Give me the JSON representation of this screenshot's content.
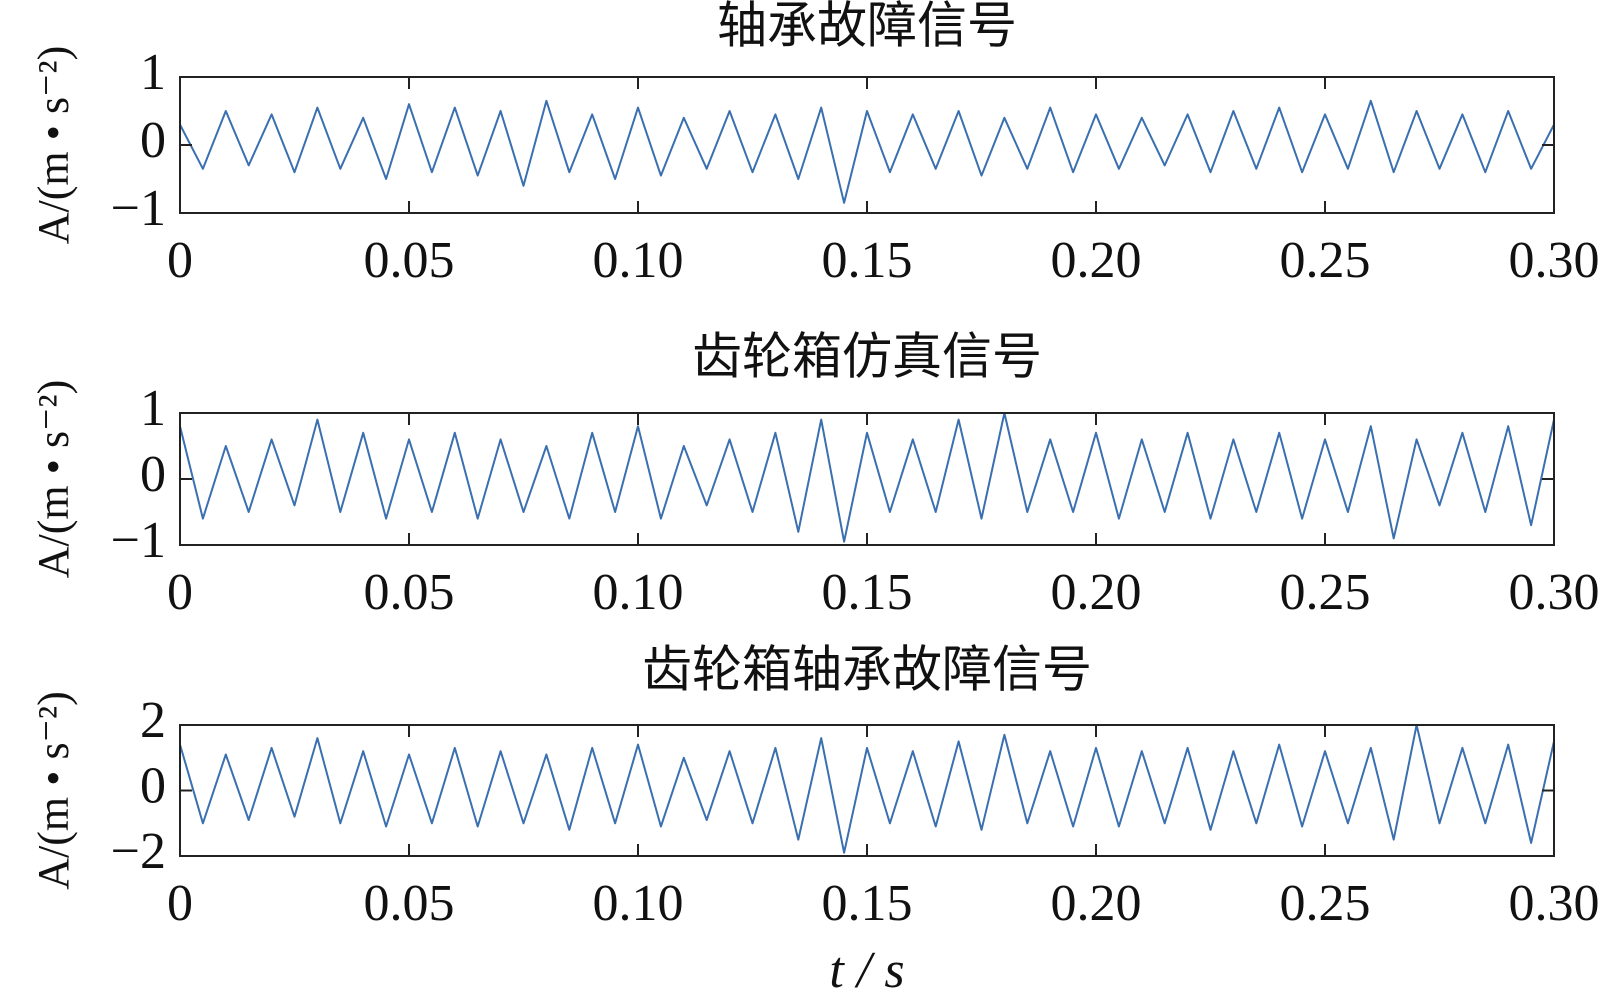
{
  "chart_data": [
    {
      "type": "line",
      "title": "轴承故障信号",
      "ylabel": "A/(m • s⁻²)",
      "color": "#3a6fb0",
      "x": [
        0,
        0.005,
        0.01,
        0.015,
        0.02,
        0.025,
        0.03,
        0.035,
        0.04,
        0.045,
        0.05,
        0.055,
        0.06,
        0.065,
        0.07,
        0.075,
        0.08,
        0.085,
        0.09,
        0.095,
        0.1,
        0.105,
        0.11,
        0.115,
        0.12,
        0.125,
        0.13,
        0.135,
        0.14,
        0.145,
        0.15,
        0.155,
        0.16,
        0.165,
        0.17,
        0.175,
        0.18,
        0.185,
        0.19,
        0.195,
        0.2,
        0.205,
        0.21,
        0.215,
        0.22,
        0.225,
        0.23,
        0.235,
        0.24,
        0.245,
        0.25,
        0.255,
        0.26,
        0.265,
        0.27,
        0.275,
        0.28,
        0.285,
        0.29,
        0.295,
        0.3
      ],
      "values": [
        0.3,
        -0.35,
        0.5,
        -0.3,
        0.45,
        -0.4,
        0.55,
        -0.35,
        0.4,
        -0.5,
        0.6,
        -0.4,
        0.55,
        -0.45,
        0.5,
        -0.6,
        0.65,
        -0.4,
        0.45,
        -0.5,
        0.55,
        -0.45,
        0.4,
        -0.35,
        0.5,
        -0.4,
        0.45,
        -0.5,
        0.55,
        -0.85,
        0.5,
        -0.4,
        0.45,
        -0.35,
        0.5,
        -0.45,
        0.4,
        -0.35,
        0.55,
        -0.4,
        0.45,
        -0.35,
        0.4,
        -0.3,
        0.45,
        -0.4,
        0.5,
        -0.35,
        0.55,
        -0.4,
        0.45,
        -0.35,
        0.65,
        -0.4,
        0.5,
        -0.35,
        0.45,
        -0.4,
        0.5,
        -0.35,
        0.3
      ],
      "xlim": [
        0,
        0.3
      ],
      "xticks": [
        0,
        0.05,
        {
          "value": 0.1,
          "label": "0.10"
        },
        0.15,
        {
          "value": 0.2,
          "label": "0.20"
        },
        0.25,
        {
          "value": 0.3,
          "label": "0.30"
        }
      ],
      "ylim": [
        -1,
        1
      ],
      "yticks": [
        {
          "value": -1,
          "label": "−1"
        },
        0,
        1
      ]
    },
    {
      "type": "line",
      "title": "齿轮箱仿真信号",
      "ylabel": "A/(m • s⁻²)",
      "color": "#3a6fb0",
      "x": [
        0,
        0.005,
        0.01,
        0.015,
        0.02,
        0.025,
        0.03,
        0.035,
        0.04,
        0.045,
        0.05,
        0.055,
        0.06,
        0.065,
        0.07,
        0.075,
        0.08,
        0.085,
        0.09,
        0.095,
        0.1,
        0.105,
        0.11,
        0.115,
        0.12,
        0.125,
        0.13,
        0.135,
        0.14,
        0.145,
        0.15,
        0.155,
        0.16,
        0.165,
        0.17,
        0.175,
        0.18,
        0.185,
        0.19,
        0.195,
        0.2,
        0.205,
        0.21,
        0.215,
        0.22,
        0.225,
        0.23,
        0.235,
        0.24,
        0.245,
        0.25,
        0.255,
        0.26,
        0.265,
        0.27,
        0.275,
        0.28,
        0.285,
        0.29,
        0.295,
        0.3
      ],
      "values": [
        0.8,
        -0.6,
        0.5,
        -0.5,
        0.6,
        -0.4,
        0.9,
        -0.5,
        0.7,
        -0.6,
        0.6,
        -0.5,
        0.7,
        -0.6,
        0.6,
        -0.5,
        0.5,
        -0.6,
        0.7,
        -0.5,
        0.8,
        -0.6,
        0.5,
        -0.4,
        0.6,
        -0.5,
        0.7,
        -0.8,
        0.9,
        -0.95,
        0.7,
        -0.5,
        0.6,
        -0.5,
        0.9,
        -0.6,
        1.0,
        -0.5,
        0.6,
        -0.5,
        0.7,
        -0.6,
        0.6,
        -0.5,
        0.7,
        -0.6,
        0.6,
        -0.5,
        0.7,
        -0.6,
        0.6,
        -0.5,
        0.8,
        -0.9,
        0.6,
        -0.4,
        0.7,
        -0.5,
        0.8,
        -0.7,
        0.9
      ],
      "xlim": [
        0,
        0.3
      ],
      "xticks": [
        0,
        0.05,
        {
          "value": 0.1,
          "label": "0.10"
        },
        0.15,
        {
          "value": 0.2,
          "label": "0.20"
        },
        0.25,
        {
          "value": 0.3,
          "label": "0.30"
        }
      ],
      "ylim": [
        -1,
        1
      ],
      "yticks": [
        {
          "value": -1,
          "label": "−1"
        },
        0,
        1
      ]
    },
    {
      "type": "line",
      "title": "齿轮箱轴承故障信号",
      "ylabel": "A/(m • s⁻²)",
      "xlabel": "t / s",
      "color": "#3a6fb0",
      "x": [
        0,
        0.005,
        0.01,
        0.015,
        0.02,
        0.025,
        0.03,
        0.035,
        0.04,
        0.045,
        0.05,
        0.055,
        0.06,
        0.065,
        0.07,
        0.075,
        0.08,
        0.085,
        0.09,
        0.095,
        0.1,
        0.105,
        0.11,
        0.115,
        0.12,
        0.125,
        0.13,
        0.135,
        0.14,
        0.145,
        0.15,
        0.155,
        0.16,
        0.165,
        0.17,
        0.175,
        0.18,
        0.185,
        0.19,
        0.195,
        0.2,
        0.205,
        0.21,
        0.215,
        0.22,
        0.225,
        0.23,
        0.235,
        0.24,
        0.245,
        0.25,
        0.255,
        0.26,
        0.265,
        0.27,
        0.275,
        0.28,
        0.285,
        0.29,
        0.295,
        0.3
      ],
      "values": [
        1.4,
        -1.0,
        1.1,
        -0.9,
        1.3,
        -0.8,
        1.6,
        -1.0,
        1.2,
        -1.1,
        1.1,
        -1.0,
        1.3,
        -1.1,
        1.2,
        -1.0,
        1.1,
        -1.2,
        1.3,
        -1.0,
        1.4,
        -1.1,
        1.0,
        -0.9,
        1.2,
        -1.0,
        1.3,
        -1.5,
        1.6,
        -1.9,
        1.3,
        -1.0,
        1.2,
        -1.1,
        1.5,
        -1.2,
        1.7,
        -1.0,
        1.2,
        -1.1,
        1.3,
        -1.1,
        1.2,
        -1.0,
        1.3,
        -1.2,
        1.2,
        -1.0,
        1.4,
        -1.1,
        1.2,
        -1.0,
        1.3,
        -1.5,
        2.0,
        -1.0,
        1.3,
        -1.0,
        1.4,
        -1.6,
        1.5
      ],
      "xlim": [
        0,
        0.3
      ],
      "xticks": [
        0,
        0.05,
        {
          "value": 0.1,
          "label": "0.10"
        },
        0.15,
        {
          "value": 0.2,
          "label": "0.20"
        },
        0.25,
        {
          "value": 0.3,
          "label": "0.30"
        }
      ],
      "ylim": [
        -2,
        2
      ],
      "yticks": [
        {
          "value": -2,
          "label": "−2"
        },
        0,
        2
      ]
    }
  ]
}
